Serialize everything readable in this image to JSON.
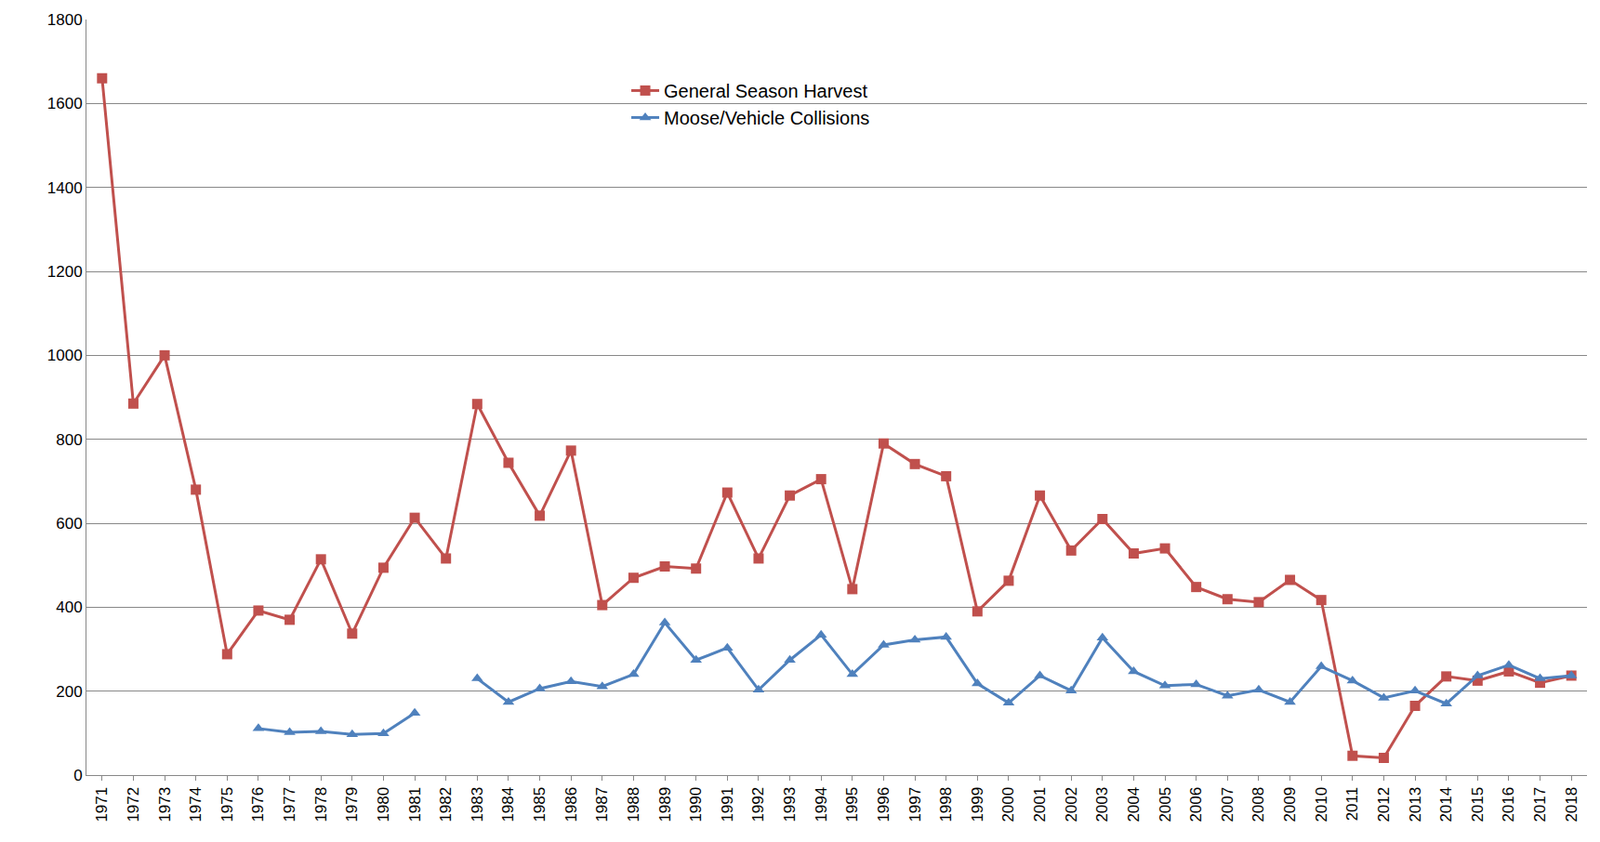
{
  "chart_data": {
    "type": "line",
    "categories": [
      "1971",
      "1972",
      "1973",
      "1974",
      "1975",
      "1976",
      "1977",
      "1978",
      "1979",
      "1980",
      "1981",
      "1982",
      "1983",
      "1984",
      "1985",
      "1986",
      "1987",
      "1988",
      "1989",
      "1990",
      "1991",
      "1992",
      "1993",
      "1994",
      "1995",
      "1996",
      "1997",
      "1998",
      "1999",
      "2000",
      "2001",
      "2002",
      "2003",
      "2004",
      "2005",
      "2006",
      "2007",
      "2008",
      "2009",
      "2010",
      "2011",
      "2012",
      "2013",
      "2014",
      "2015",
      "2016",
      "2017",
      "2018"
    ],
    "series": [
      {
        "name": "General Season Harvest",
        "color": "#c0504d",
        "marker": "square",
        "values": [
          1660,
          885,
          1000,
          680,
          288,
          392,
          370,
          514,
          337,
          494,
          613,
          516,
          884,
          744,
          618,
          773,
          405,
          470,
          497,
          492,
          673,
          516,
          666,
          705,
          443,
          790,
          741,
          712,
          390,
          463,
          666,
          535,
          610,
          528,
          540,
          448,
          419,
          412,
          465,
          417,
          46,
          41,
          165,
          235,
          225,
          247,
          220,
          237
        ]
      },
      {
        "name": "Moose/Vehicle Collisions",
        "color": "#4f81bd",
        "marker": "triangle-up",
        "values": [
          null,
          null,
          null,
          null,
          null,
          111,
          102,
          104,
          97,
          99,
          148,
          null,
          230,
          174,
          206,
          223,
          211,
          240,
          363,
          274,
          303,
          203,
          274,
          334,
          240,
          310,
          322,
          329,
          218,
          172,
          237,
          201,
          327,
          247,
          213,
          216,
          189,
          203,
          174,
          259,
          225,
          184,
          201,
          170,
          237,
          262,
          230,
          237
        ]
      }
    ],
    "ylim": [
      0,
      1800
    ],
    "yticks": [
      0,
      200,
      400,
      600,
      800,
      1000,
      1200,
      1400,
      1600,
      1800
    ],
    "grid": true,
    "legend": "top"
  }
}
